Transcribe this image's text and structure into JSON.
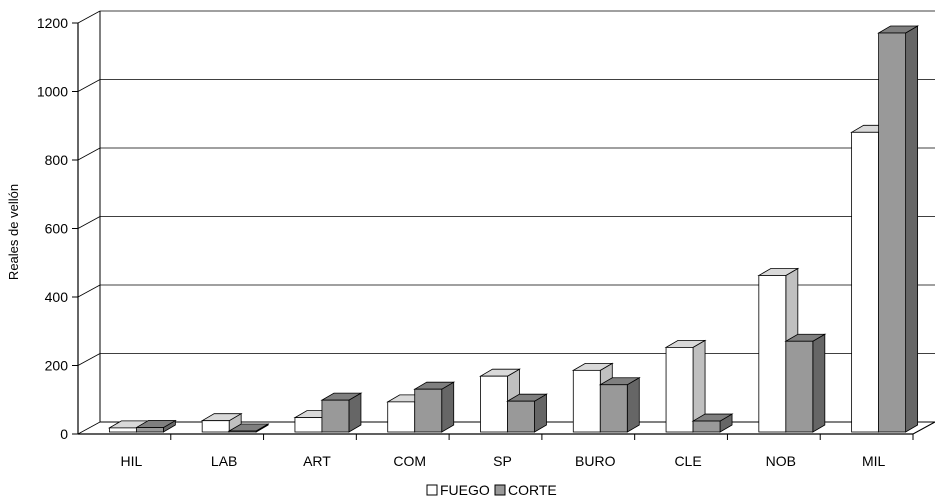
{
  "chart_data": {
    "type": "bar",
    "title": "",
    "xlabel": "",
    "ylabel": "Reales de vellón",
    "ylim": [
      0,
      1200
    ],
    "yticks": [
      0,
      200,
      400,
      600,
      800,
      1000,
      1200
    ],
    "categories": [
      "HIL",
      "LAB",
      "ART",
      "COM",
      "SP",
      "BURO",
      "CLE",
      "NOB",
      "MIL"
    ],
    "series": [
      {
        "name": "FUEGO",
        "values": [
          12,
          33,
          42,
          88,
          163,
          180,
          247,
          457,
          875
        ]
      },
      {
        "name": "CORTE",
        "values": [
          13,
          3,
          93,
          125,
          90,
          138,
          32,
          265,
          1165
        ]
      }
    ],
    "grid": true,
    "legend_position": "bottom-center",
    "colors": {
      "FUEGO": "#ffffff",
      "CORTE": "#999999",
      "CORTE_side": "#666666",
      "CORTE_top": "#7f7f7f",
      "FUEGO_side": "#c0c0c0",
      "FUEGO_top": "#d9d9d9"
    }
  }
}
